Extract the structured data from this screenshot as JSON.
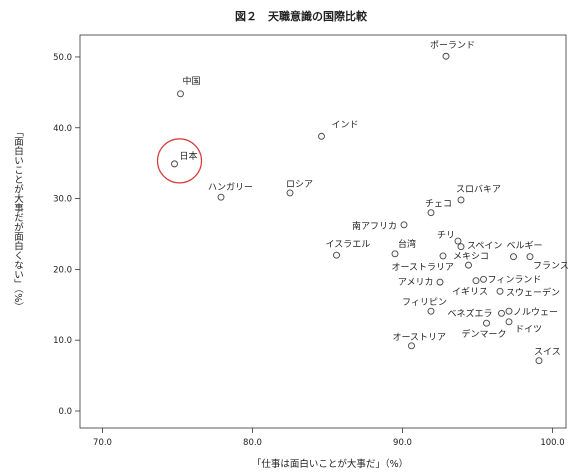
{
  "chart_data": {
    "type": "scatter",
    "title": "図２　天職意識の国際比較",
    "xlabel": "「仕事は面白いことが大事だ」（%）",
    "ylabel": "「面白いことが大事だが面白くない」（%）",
    "xlim": [
      68.5,
      100.9
    ],
    "ylim": [
      -2.4,
      53.1
    ],
    "xticks": [
      "70.0",
      "80.0",
      "90.0",
      "100.0"
    ],
    "yticks": [
      "0.0",
      "10.0",
      "20.0",
      "30.0",
      "40.0",
      "50.0"
    ],
    "grid": false,
    "marker_color": "#444444",
    "highlight_color": "#d93a3a",
    "points": [
      {
        "label": "ポーランド",
        "x": 92.9,
        "y": 50.1
      },
      {
        "label": "中国",
        "x": 75.2,
        "y": 44.8
      },
      {
        "label": "インド",
        "x": 84.6,
        "y": 38.8
      },
      {
        "label": "日本",
        "x": 74.8,
        "y": 34.9,
        "highlighted": true
      },
      {
        "label": "ハンガリー",
        "x": 77.9,
        "y": 30.2
      },
      {
        "label": "ロシア",
        "x": 82.5,
        "y": 30.8
      },
      {
        "label": "スロバキア",
        "x": 93.9,
        "y": 29.8
      },
      {
        "label": "チェコ",
        "x": 91.9,
        "y": 28.0
      },
      {
        "label": "南アフリカ",
        "x": 90.1,
        "y": 26.3
      },
      {
        "label": "イスラエル",
        "x": 85.6,
        "y": 22.0
      },
      {
        "label": "台湾",
        "x": 89.5,
        "y": 22.2
      },
      {
        "label": "チリ",
        "x": 93.7,
        "y": 24.0
      },
      {
        "label": "スペイン",
        "x": 93.9,
        "y": 23.2
      },
      {
        "label": "ベルギー",
        "x": 97.4,
        "y": 21.8
      },
      {
        "label": "フランス",
        "x": 98.5,
        "y": 21.8
      },
      {
        "label": "メキシコ",
        "x": 92.7,
        "y": 21.9
      },
      {
        "label": "オーストラリア",
        "x": 94.4,
        "y": 20.6
      },
      {
        "label": "アメリカ",
        "x": 92.5,
        "y": 18.2
      },
      {
        "label": "イギリス",
        "x": 94.9,
        "y": 18.4
      },
      {
        "label": "フィンランド",
        "x": 95.4,
        "y": 18.6
      },
      {
        "label": "スウェーデン",
        "x": 96.5,
        "y": 16.9
      },
      {
        "label": "フィリピン",
        "x": 91.9,
        "y": 14.1
      },
      {
        "label": "ベネズエラ",
        "x": 96.6,
        "y": 13.8
      },
      {
        "label": "ノルウェー",
        "x": 97.1,
        "y": 14.1
      },
      {
        "label": "デンマーク",
        "x": 95.6,
        "y": 12.4
      },
      {
        "label": "ドイツ",
        "x": 97.1,
        "y": 12.6
      },
      {
        "label": "オーストリア",
        "x": 90.6,
        "y": 9.2
      },
      {
        "label": "スイス",
        "x": 99.1,
        "y": 7.1
      }
    ]
  }
}
